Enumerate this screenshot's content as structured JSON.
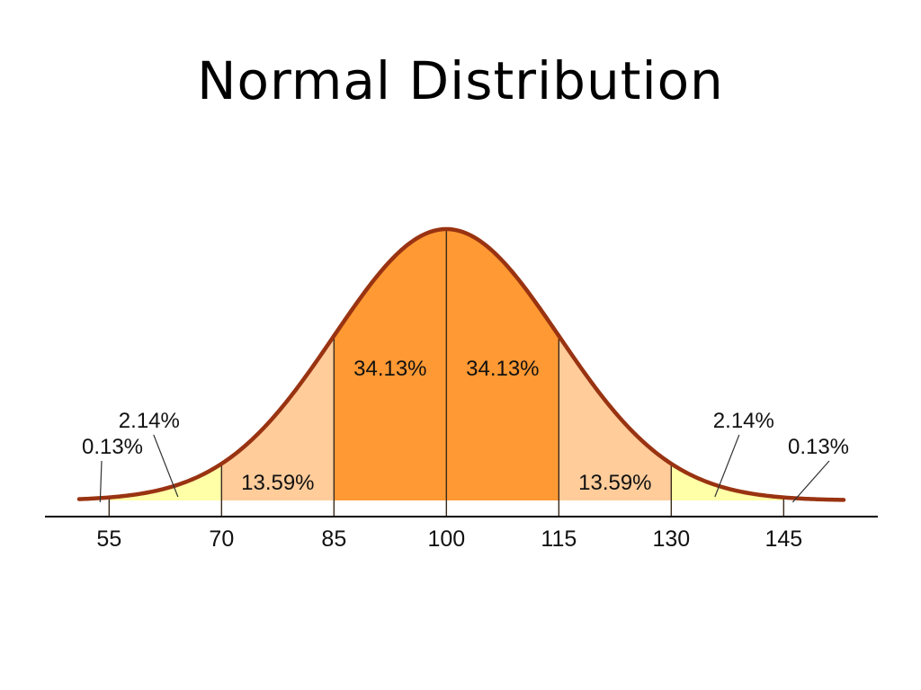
{
  "title": "Normal Distribution",
  "chart_data": {
    "type": "area",
    "title": "Normal Distribution",
    "mean": 100,
    "sd": 15,
    "xlim": [
      51,
      153
    ],
    "x_ticks": [
      "55",
      "70",
      "85",
      "100",
      "115",
      "130",
      "145"
    ],
    "bands": [
      {
        "from": 55,
        "to": 70,
        "percent": "2.14%",
        "color": "#ffffa8"
      },
      {
        "from": 70,
        "to": 85,
        "percent": "13.59%",
        "color": "#ffcc9a"
      },
      {
        "from": 85,
        "to": 100,
        "percent": "34.13%",
        "color": "#ff9933"
      },
      {
        "from": 100,
        "to": 115,
        "percent": "34.13%",
        "color": "#ff9933"
      },
      {
        "from": 115,
        "to": 130,
        "percent": "13.59%",
        "color": "#ffcc9a"
      },
      {
        "from": 130,
        "to": 145,
        "percent": "2.14%",
        "color": "#ffffa8"
      }
    ],
    "tails": [
      {
        "side": "left",
        "percent": "0.13%"
      },
      {
        "side": "right",
        "percent": "0.13%"
      }
    ],
    "curve_color": "#993311",
    "divider_color": "#3a2a1a"
  }
}
